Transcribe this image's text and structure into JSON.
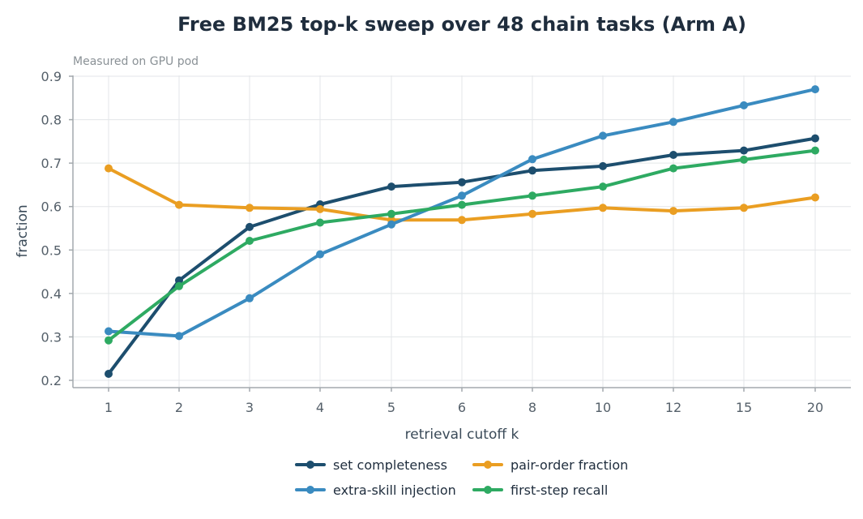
{
  "chart_data": {
    "type": "line",
    "title": "Free BM25 top-k sweep over 48 chain tasks (Arm A)",
    "subtitle": "Measured on GPU pod",
    "xlabel": "retrieval cutoff k",
    "ylabel": "fraction",
    "categories": [
      "1",
      "2",
      "3",
      "4",
      "5",
      "6",
      "8",
      "10",
      "12",
      "15",
      "20"
    ],
    "ylim": [
      0.2,
      0.9
    ],
    "yticks": [
      "0.2",
      "0.3",
      "0.4",
      "0.5",
      "0.6",
      "0.7",
      "0.8",
      "0.9"
    ],
    "grid": true,
    "legend_position": "bottom",
    "series": [
      {
        "name": "set completeness",
        "color": "#1d4e6e",
        "values": [
          0.215,
          0.43,
          0.553,
          0.605,
          0.646,
          0.656,
          0.683,
          0.693,
          0.719,
          0.729,
          0.757
        ]
      },
      {
        "name": "pair-order fraction",
        "color": "#ea9e22",
        "values": [
          0.688,
          0.604,
          0.597,
          0.594,
          0.569,
          0.569,
          0.583,
          0.597,
          0.59,
          0.597,
          0.621
        ]
      },
      {
        "name": "extra-skill injection",
        "color": "#3a8bc0",
        "values": [
          0.313,
          0.302,
          0.389,
          0.49,
          0.559,
          0.625,
          0.709,
          0.763,
          0.795,
          0.833,
          0.87
        ]
      },
      {
        "name": "first-step recall",
        "color": "#2eaa62",
        "values": [
          0.292,
          0.417,
          0.521,
          0.563,
          0.583,
          0.604,
          0.625,
          0.646,
          0.688,
          0.708,
          0.729
        ]
      }
    ]
  }
}
